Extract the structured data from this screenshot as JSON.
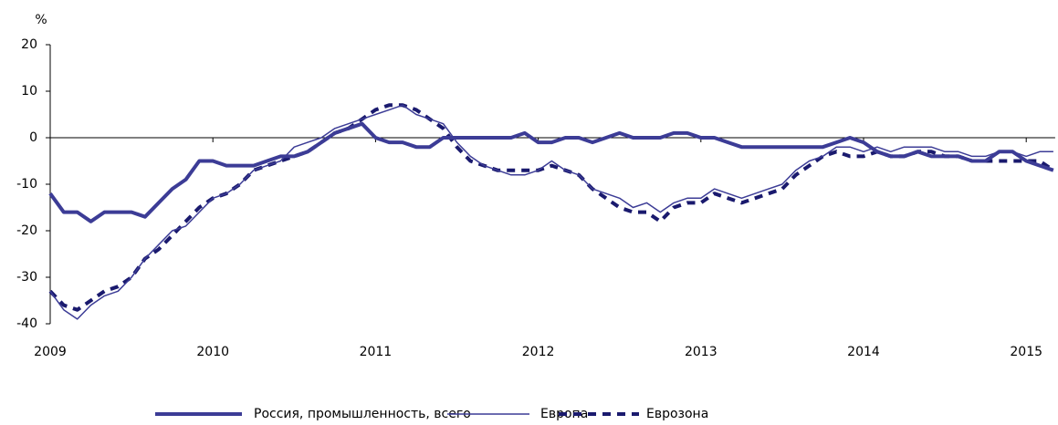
{
  "chart_data": {
    "type": "line",
    "y_label": "%",
    "categories": [
      "2009",
      null,
      null,
      null,
      null,
      null,
      null,
      null,
      null,
      null,
      null,
      null,
      "2010",
      null,
      null,
      null,
      null,
      null,
      null,
      null,
      null,
      null,
      null,
      null,
      "2011",
      null,
      null,
      null,
      null,
      null,
      null,
      null,
      null,
      null,
      null,
      null,
      "2012",
      null,
      null,
      null,
      null,
      null,
      null,
      null,
      null,
      null,
      null,
      null,
      "2013",
      null,
      null,
      null,
      null,
      null,
      null,
      null,
      null,
      null,
      null,
      null,
      "2014",
      null,
      null,
      null,
      null,
      null,
      null,
      null,
      null,
      null,
      null,
      null,
      "2015",
      null,
      null
    ],
    "series": [
      {
        "name": "Россия, промышленность, всего",
        "color": "#3c3c96",
        "style": "thick",
        "values": [
          -12,
          -16,
          -16,
          -18,
          -16,
          -16,
          -16,
          -17,
          -14,
          -11,
          -9,
          -5,
          -5,
          -6,
          -6,
          -6,
          -5,
          -4,
          -4,
          -3,
          -1,
          1,
          2,
          3,
          0,
          -1,
          -1,
          -2,
          -2,
          0,
          0,
          0,
          0,
          0,
          0,
          1,
          -1,
          -1,
          0,
          0,
          -1,
          0,
          1,
          0,
          0,
          0,
          1,
          1,
          0,
          0,
          -1,
          -2,
          -2,
          -2,
          -2,
          -2,
          -2,
          -2,
          -1,
          0,
          -1,
          -3,
          -4,
          -4,
          -3,
          -4,
          -4,
          -4,
          -5,
          -5,
          -3,
          -3,
          -5,
          -6,
          -7
        ]
      },
      {
        "name": "Европа",
        "color": "#3c3c96",
        "style": "thin",
        "values": [
          -33,
          -37,
          -39,
          -36,
          -34,
          -33,
          -30,
          -26,
          -23,
          -20,
          -19,
          -16,
          -13,
          -12,
          -10,
          -7,
          -6,
          -5,
          -2,
          -1,
          0,
          2,
          3,
          4,
          5,
          6,
          7,
          5,
          4,
          3,
          -1,
          -4,
          -6,
          -7,
          -8,
          -8,
          -7,
          -5,
          -7,
          -8,
          -11,
          -12,
          -13,
          -15,
          -14,
          -16,
          -14,
          -13,
          -13,
          -11,
          -12,
          -13,
          -12,
          -11,
          -10,
          -7,
          -5,
          -4,
          -2,
          -2,
          -3,
          -2,
          -3,
          -2,
          -2,
          -2,
          -3,
          -3,
          -4,
          -4,
          -3,
          -3,
          -4,
          -3,
          -3
        ]
      },
      {
        "name": "Еврозона",
        "color": "#1a1a6e",
        "style": "dashed",
        "values": [
          -33,
          -36,
          -37,
          -35,
          -33,
          -32,
          -30,
          -26,
          -24,
          -21,
          -18,
          -15,
          -13,
          -12,
          -10,
          -7,
          -6,
          -5,
          -4,
          -3,
          -1,
          1,
          2,
          4,
          6,
          7,
          7,
          6,
          4,
          2,
          -2,
          -5,
          -6,
          -7,
          -7,
          -7,
          -7,
          -6,
          -7,
          -8,
          -11,
          -13,
          -15,
          -16,
          -16,
          -18,
          -15,
          -14,
          -14,
          -12,
          -13,
          -14,
          -13,
          -12,
          -11,
          -8,
          -6,
          -4,
          -3,
          -4,
          -4,
          -3,
          -4,
          -4,
          -3,
          -3,
          -4,
          -4,
          -5,
          -5,
          -5,
          -5,
          -5,
          -5,
          -7
        ]
      }
    ],
    "ylim": [
      -40,
      20
    ],
    "yticks": [
      -40,
      -30,
      -20,
      -10,
      0,
      10,
      20
    ],
    "legend": "bottom"
  }
}
